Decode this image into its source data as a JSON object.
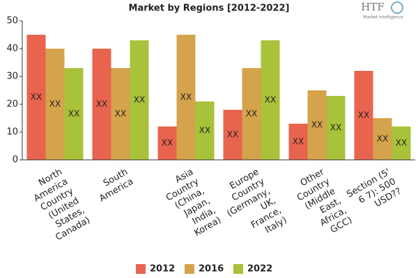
{
  "chart_data": {
    "type": "bar",
    "title": "Market by Regions [2012-2022]",
    "categories": [
      "North\nAmerica\nCountry\n(United\nStates,\nCanada)",
      "South\nAmerica",
      "Asia\nCountry\n(China,\nJapan,\nIndia,\nKorea)",
      "Europe\nCountry\n(Germany,\nUK,\nFrance,\nItaly)",
      "Other\nCountry\n(Middle\nEast,\nAfrica,\nGCC)",
      "Section (5'\n6 7): 500\nUSD??"
    ],
    "series": [
      {
        "name": "2012",
        "color": "#e8644f",
        "values": [
          45,
          40,
          12,
          18,
          13,
          32
        ],
        "value_labels": [
          "XX",
          "XX",
          "XX",
          "XX",
          "XX",
          "XX"
        ]
      },
      {
        "name": "2016",
        "color": "#d4a34b",
        "values": [
          40,
          33,
          45,
          33,
          25,
          15
        ],
        "value_labels": [
          "XX",
          "XX",
          "XX",
          "XX",
          "XX",
          "XX"
        ]
      },
      {
        "name": "2022",
        "color": "#a8c23a",
        "values": [
          33,
          43,
          21,
          43,
          23,
          12
        ],
        "value_labels": [
          "XX",
          "XX",
          "XX",
          "XX",
          "XX",
          "XX"
        ]
      }
    ],
    "ylim": [
      0,
      50
    ],
    "yticks": [
      0,
      10,
      20,
      30,
      40,
      50
    ],
    "grid": false,
    "legend": "bottom"
  },
  "logo": {
    "brand": "HTF",
    "tagline": "Market Intelligence"
  }
}
